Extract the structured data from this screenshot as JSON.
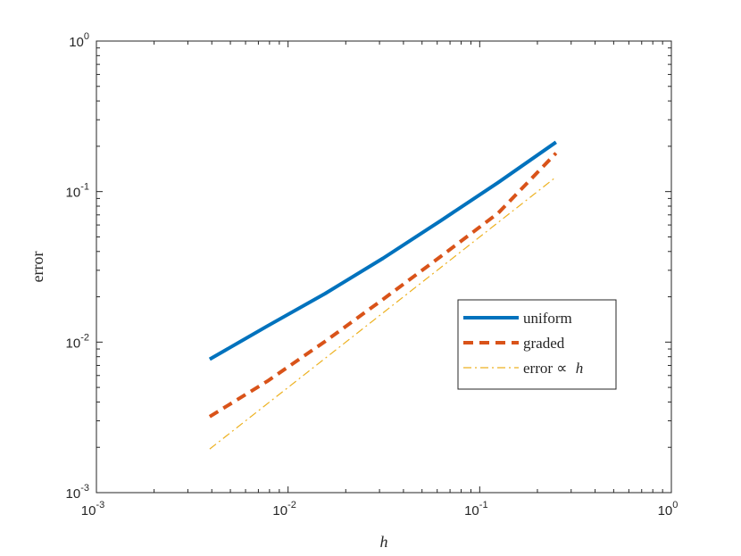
{
  "chart_data": {
    "type": "line",
    "title": "",
    "xlabel": "h",
    "ylabel": "error",
    "xscale": "log",
    "yscale": "log",
    "xlim": [
      0.001,
      1
    ],
    "ylim": [
      0.001,
      1
    ],
    "grid": false,
    "legend_position": "right-center",
    "x_ticks": [
      {
        "base": "10",
        "exp": "-3",
        "value": 0.001
      },
      {
        "base": "10",
        "exp": "-2",
        "value": 0.01
      },
      {
        "base": "10",
        "exp": "-1",
        "value": 0.1
      },
      {
        "base": "10",
        "exp": "0",
        "value": 1
      }
    ],
    "y_ticks": [
      {
        "base": "10",
        "exp": "-3",
        "value": 0.001
      },
      {
        "base": "10",
        "exp": "-2",
        "value": 0.01
      },
      {
        "base": "10",
        "exp": "-1",
        "value": 0.1
      },
      {
        "base": "10",
        "exp": "0",
        "value": 1
      }
    ],
    "series": [
      {
        "name": "uniform",
        "color": "#0072BD",
        "style": "solid",
        "x": [
          0.0039,
          0.0078,
          0.0156,
          0.03125,
          0.0625,
          0.125,
          0.25
        ],
        "y": [
          0.0077,
          0.0128,
          0.021,
          0.036,
          0.064,
          0.115,
          0.213
        ]
      },
      {
        "name": "graded",
        "color": "#D95319",
        "style": "dashed",
        "x": [
          0.0039,
          0.0078,
          0.0156,
          0.03125,
          0.0625,
          0.125,
          0.25
        ],
        "y": [
          0.0032,
          0.0055,
          0.0101,
          0.0192,
          0.037,
          0.072,
          0.18
        ]
      },
      {
        "name": "error ∝ h",
        "label_main": "error ∝",
        "label_var": "h",
        "color": "#EDB120",
        "style": "dash-dot",
        "x": [
          0.0039,
          0.25
        ],
        "y": [
          0.00195,
          0.125
        ]
      }
    ]
  }
}
